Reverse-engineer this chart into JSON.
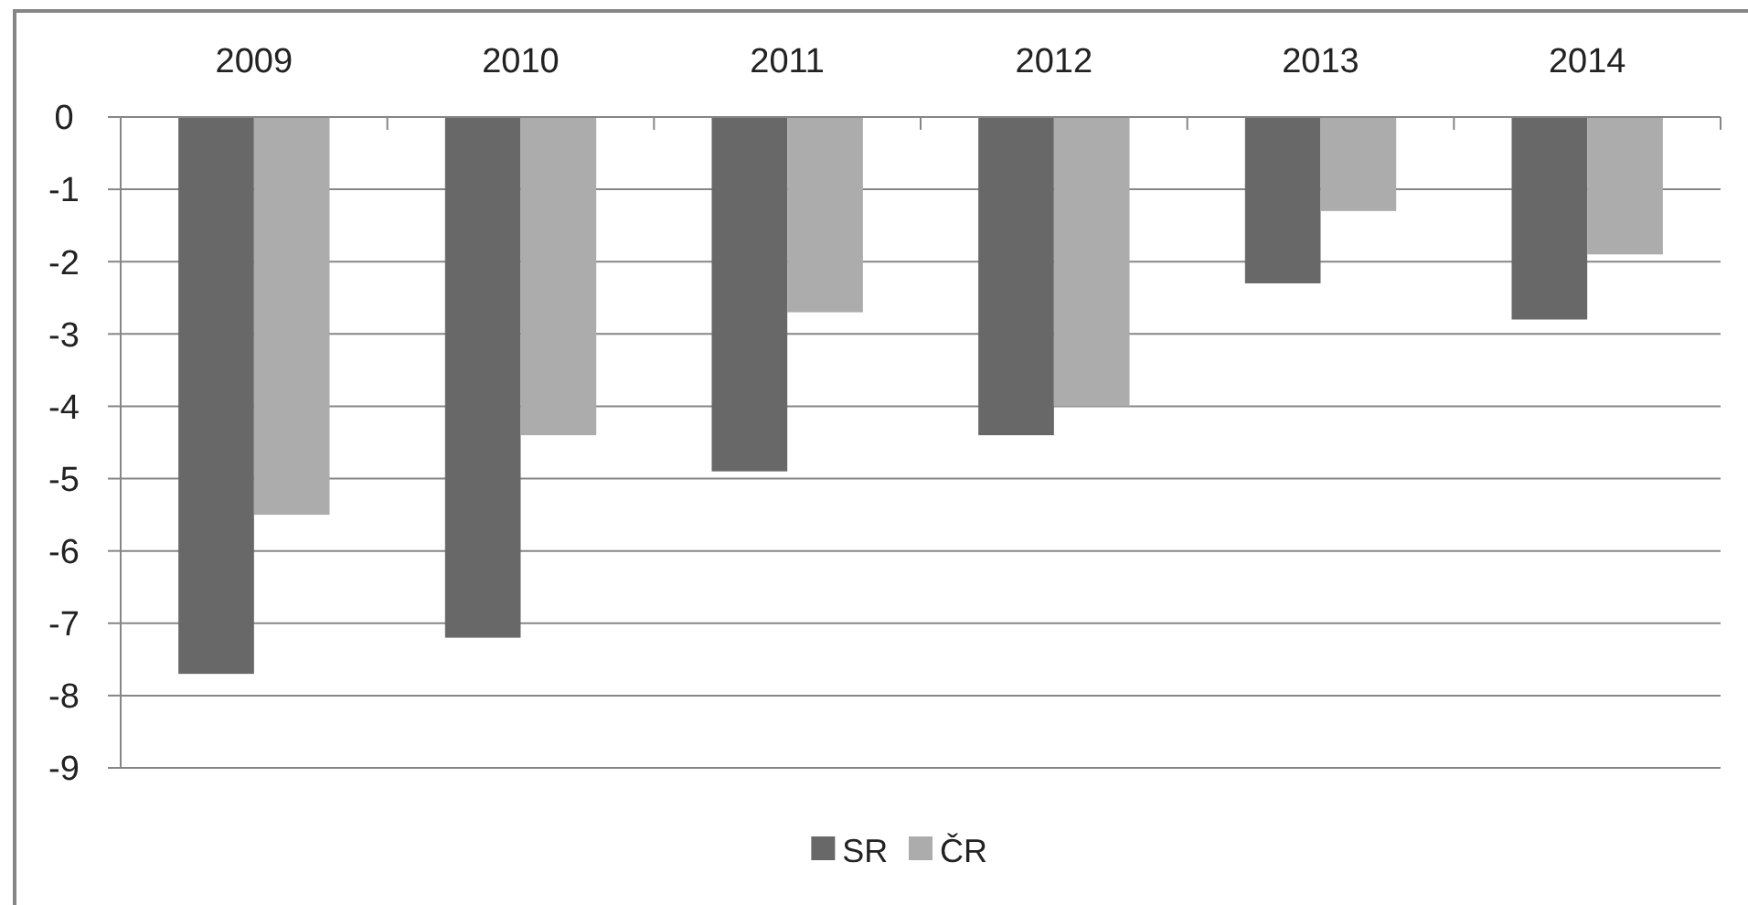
{
  "chart_data": {
    "type": "bar",
    "categories": [
      "2009",
      "2010",
      "2011",
      "2012",
      "2013",
      "2014"
    ],
    "series": [
      {
        "name": "SR",
        "color": "#686868",
        "values": [
          -7.7,
          -7.2,
          -4.9,
          -4.4,
          -2.3,
          -2.8
        ]
      },
      {
        "name": "ČR",
        "color": "#acacac",
        "values": [
          -5.5,
          -4.4,
          -2.7,
          -4.0,
          -1.3,
          -1.9
        ]
      }
    ],
    "ylim": [
      -9,
      0
    ],
    "yticks": [
      0,
      -1,
      -2,
      -3,
      -4,
      -5,
      -6,
      -7,
      -8,
      -9
    ],
    "grid": "y",
    "legend": "bottom"
  }
}
